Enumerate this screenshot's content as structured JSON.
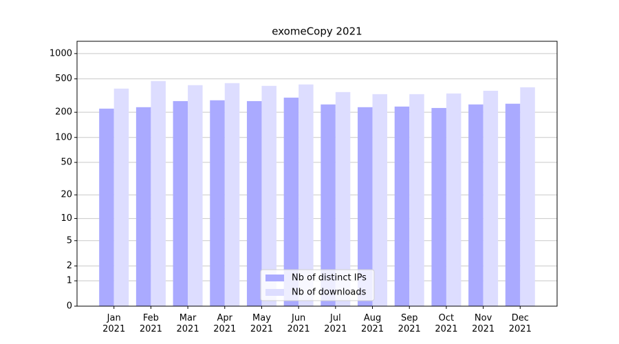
{
  "chart_data": {
    "type": "bar",
    "title": "exomeCopy 2021",
    "yscale": "log1p",
    "categories": [
      "Jan\n2021",
      "Feb\n2021",
      "Mar\n2021",
      "Apr\n2021",
      "May\n2021",
      "Jun\n2021",
      "Jul\n2021",
      "Aug\n2021",
      "Sep\n2021",
      "Oct\n2021",
      "Nov\n2021",
      "Dec\n2021"
    ],
    "series": [
      {
        "name": "Nb of distinct IPs",
        "color": "#aaaaff",
        "values": [
          221,
          230,
          272,
          278,
          272,
          299,
          248,
          230,
          234,
          225,
          248,
          253
        ]
      },
      {
        "name": "Nb of downloads",
        "color": "#ddddff",
        "values": [
          383,
          471,
          421,
          445,
          413,
          429,
          348,
          329,
          329,
          335,
          361,
          397
        ]
      }
    ],
    "ylim": [
      0,
      1400
    ],
    "yticks": [
      0,
      1,
      2,
      5,
      10,
      20,
      50,
      100,
      200,
      500,
      1000
    ],
    "grid": true,
    "legend": "lower center"
  }
}
